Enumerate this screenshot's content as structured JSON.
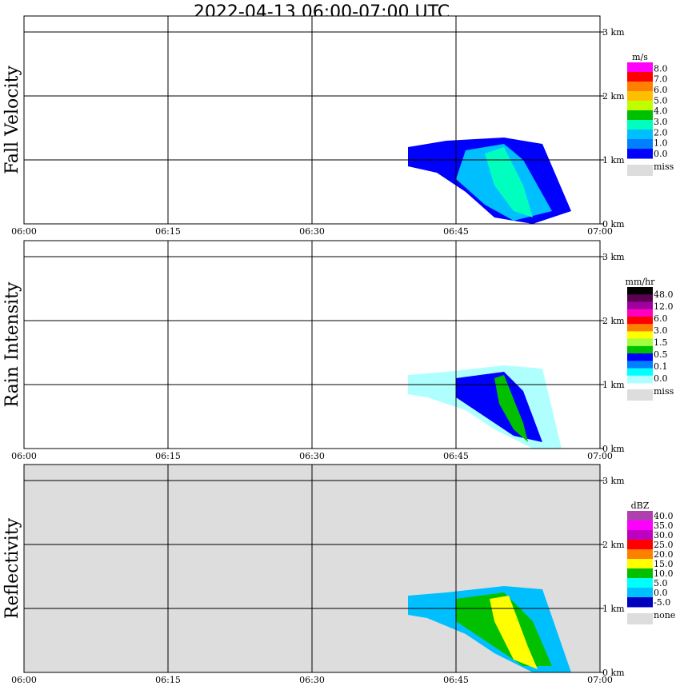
{
  "title": "2022-04-13   06:00-07:00 UTC",
  "chart_data": [
    {
      "type": "heatmap",
      "ylabel": "Fall Velocity",
      "unit": "m/s",
      "background": "#ffffff",
      "x_ticks": [
        "06:00",
        "06:15",
        "06:30",
        "06:45",
        "07:00"
      ],
      "y_ticks": [
        "0 km",
        "1 km",
        "2 km",
        "3 km"
      ],
      "xlim": [
        "06:00",
        "07:00"
      ],
      "ylim_km": [
        0,
        3.2
      ],
      "grid": true,
      "legend": {
        "labels": [
          "8.0",
          "7.0",
          "6.0",
          "5.0",
          "4.0",
          "3.0",
          "2.0",
          "1.0",
          "0.0"
        ],
        "colors": [
          "#ff00ff",
          "#ff0000",
          "#ff7f00",
          "#ffbf00",
          "#bfff00",
          "#00bf00",
          "#00ffbf",
          "#00bfff",
          "#007fff",
          "#0000ff"
        ],
        "missing_label": "miss",
        "missing_color": "#dddddd"
      }
    },
    {
      "type": "heatmap",
      "ylabel": "Rain Intensity",
      "unit": "mm/hr",
      "background": "#ffffff",
      "x_ticks": [
        "06:00",
        "06:15",
        "06:30",
        "06:45",
        "07:00"
      ],
      "y_ticks": [
        "0 km",
        "1 km",
        "2 km",
        "3 km"
      ],
      "xlim": [
        "06:00",
        "07:00"
      ],
      "ylim_km": [
        0,
        3.2
      ],
      "grid": true,
      "legend": {
        "labels": [
          "48.0",
          "12.0",
          "6.0",
          "3.0",
          "1.5",
          "0.5",
          "0.1",
          "0.0"
        ],
        "colors": [
          "#000000",
          "#5a0050",
          "#a000a0",
          "#ff00c0",
          "#ff0000",
          "#ff8000",
          "#ffff00",
          "#a0ff40",
          "#00c000",
          "#0000ff",
          "#0080ff",
          "#00ffff",
          "#b0ffff"
        ],
        "missing_label": "miss",
        "missing_color": "#dddddd"
      }
    },
    {
      "type": "heatmap",
      "ylabel": "Reflectivity",
      "unit": "dBZ",
      "background": "#dddddd",
      "x_ticks": [
        "06:00",
        "06:15",
        "06:30",
        "06:45",
        "07:00"
      ],
      "y_ticks": [
        "0 km",
        "1 km",
        "2 km",
        "3 km"
      ],
      "xlim": [
        "06:00",
        "07:00"
      ],
      "ylim_km": [
        0,
        3.2
      ],
      "grid": true,
      "legend": {
        "labels": [
          "40.0",
          "35.0",
          "30.0",
          "25.0",
          "20.0",
          "15.0",
          "10.0",
          "5.0",
          "0.0",
          "-5.0"
        ],
        "colors": [
          "#b040b0",
          "#ff00ff",
          "#c000c0",
          "#ff0000",
          "#ff7f00",
          "#ffff00",
          "#00c000",
          "#00ffff",
          "#00bfff",
          "#0000c0"
        ],
        "missing_label": "none",
        "missing_color": "#dddddd"
      }
    }
  ]
}
